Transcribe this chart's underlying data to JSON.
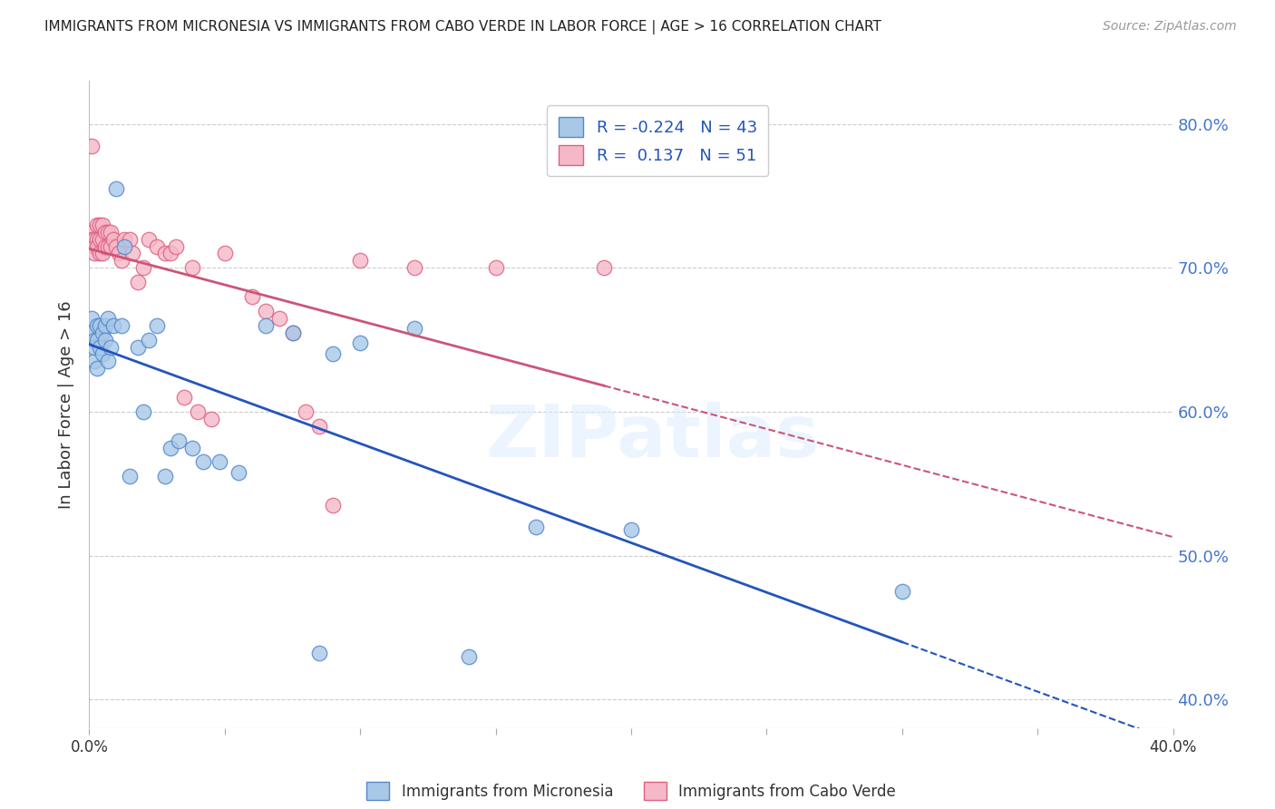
{
  "title": "IMMIGRANTS FROM MICRONESIA VS IMMIGRANTS FROM CABO VERDE IN LABOR FORCE | AGE > 16 CORRELATION CHART",
  "source": "Source: ZipAtlas.com",
  "ylabel": "In Labor Force | Age > 16",
  "xlim": [
    0.0,
    0.4
  ],
  "ylim": [
    0.38,
    0.83
  ],
  "yticks": [
    0.4,
    0.5,
    0.6,
    0.7,
    0.8
  ],
  "xticks": [
    0.0,
    0.05,
    0.1,
    0.15,
    0.2,
    0.25,
    0.3,
    0.35,
    0.4
  ],
  "micronesia_color": "#a8c8e8",
  "caboverde_color": "#f5b8c8",
  "micronesia_edge": "#5588cc",
  "caboverde_edge": "#e06080",
  "trend_micronesia_color": "#2255bb",
  "trend_caboverde_color": "#cc5577",
  "R_micronesia": -0.224,
  "N_micronesia": 43,
  "R_caboverde": 0.137,
  "N_caboverde": 51,
  "legend_micronesia": "Immigrants from Micronesia",
  "legend_caboverde": "Immigrants from Cabo Verde",
  "micronesia_x": [
    0.001,
    0.001,
    0.002,
    0.002,
    0.002,
    0.003,
    0.003,
    0.003,
    0.004,
    0.004,
    0.005,
    0.005,
    0.006,
    0.006,
    0.007,
    0.007,
    0.008,
    0.009,
    0.01,
    0.012,
    0.013,
    0.015,
    0.018,
    0.02,
    0.022,
    0.025,
    0.028,
    0.03,
    0.033,
    0.038,
    0.042,
    0.048,
    0.055,
    0.065,
    0.075,
    0.085,
    0.09,
    0.1,
    0.12,
    0.14,
    0.165,
    0.2,
    0.3
  ],
  "micronesia_y": [
    0.665,
    0.655,
    0.65,
    0.635,
    0.645,
    0.66,
    0.65,
    0.63,
    0.66,
    0.645,
    0.655,
    0.64,
    0.66,
    0.65,
    0.665,
    0.635,
    0.645,
    0.66,
    0.755,
    0.66,
    0.715,
    0.555,
    0.645,
    0.6,
    0.65,
    0.66,
    0.555,
    0.575,
    0.58,
    0.575,
    0.565,
    0.565,
    0.558,
    0.66,
    0.655,
    0.432,
    0.64,
    0.648,
    0.658,
    0.43,
    0.52,
    0.518,
    0.475
  ],
  "caboverde_x": [
    0.001,
    0.001,
    0.001,
    0.002,
    0.002,
    0.002,
    0.003,
    0.003,
    0.003,
    0.004,
    0.004,
    0.004,
    0.005,
    0.005,
    0.005,
    0.006,
    0.006,
    0.007,
    0.007,
    0.008,
    0.008,
    0.009,
    0.01,
    0.011,
    0.012,
    0.013,
    0.015,
    0.016,
    0.018,
    0.02,
    0.022,
    0.025,
    0.028,
    0.03,
    0.032,
    0.035,
    0.038,
    0.04,
    0.045,
    0.05,
    0.06,
    0.065,
    0.07,
    0.075,
    0.08,
    0.085,
    0.09,
    0.1,
    0.12,
    0.15,
    0.19
  ],
  "caboverde_y": [
    0.785,
    0.725,
    0.72,
    0.72,
    0.715,
    0.71,
    0.73,
    0.72,
    0.715,
    0.73,
    0.72,
    0.71,
    0.73,
    0.72,
    0.71,
    0.725,
    0.715,
    0.725,
    0.715,
    0.725,
    0.715,
    0.72,
    0.715,
    0.71,
    0.705,
    0.72,
    0.72,
    0.71,
    0.69,
    0.7,
    0.72,
    0.715,
    0.71,
    0.71,
    0.715,
    0.61,
    0.7,
    0.6,
    0.595,
    0.71,
    0.68,
    0.67,
    0.665,
    0.655,
    0.6,
    0.59,
    0.535,
    0.705,
    0.7,
    0.7,
    0.7
  ],
  "watermark": "ZIPatlas",
  "title_color": "#222222",
  "axis_label_color": "#4477cc",
  "grid_color": "#cccccc",
  "tick_color": "#aaaaaa"
}
